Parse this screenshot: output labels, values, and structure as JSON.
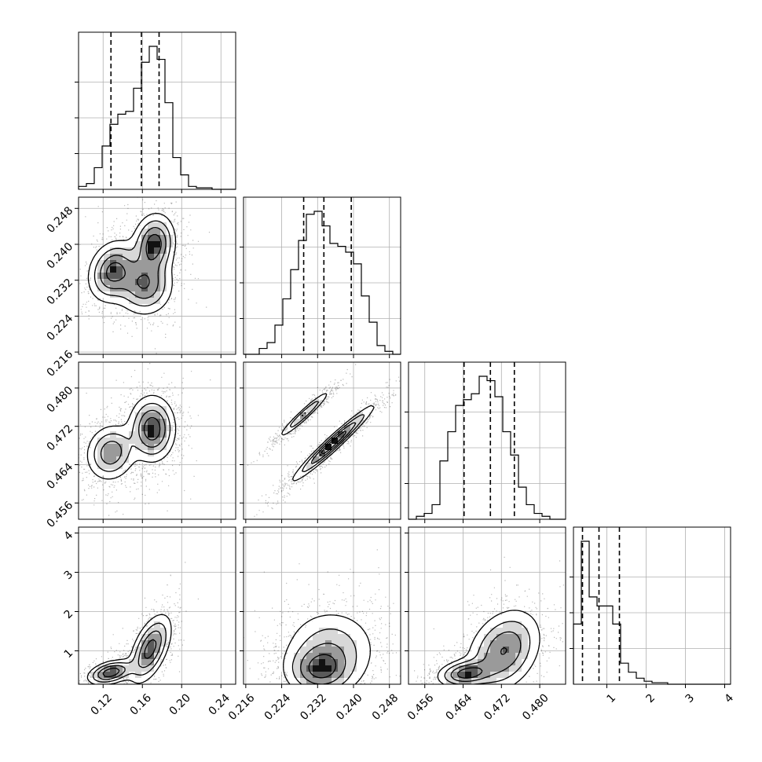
{
  "chart_data": {
    "type": "corner",
    "grid": true,
    "colors": {
      "points": "#000000",
      "line": "#000000",
      "fill_max": "#111111"
    },
    "parameters": [
      {
        "ticks": [
          0.12,
          0.16,
          0.2,
          0.24
        ],
        "tick_labels": [
          "0.12",
          "0.16",
          "0.20",
          "0.24"
        ],
        "range": [
          0.095,
          0.255
        ]
      },
      {
        "ticks": [
          0.216,
          0.224,
          0.232,
          0.24,
          0.248
        ],
        "tick_labels": [
          "0.216",
          "0.224",
          "0.232",
          "0.240",
          "0.248"
        ],
        "range": [
          0.2155,
          0.2505
        ]
      },
      {
        "ticks": [
          0.456,
          0.464,
          0.472,
          0.48
        ],
        "tick_labels": [
          "0.456",
          "0.464",
          "0.472",
          "0.480"
        ],
        "range": [
          0.4526,
          0.4854
        ]
      },
      {
        "ticks": [
          1,
          2,
          3,
          4
        ],
        "tick_labels": [
          "1",
          "2",
          "3",
          "4"
        ],
        "range": [
          0.15,
          4.15
        ]
      }
    ],
    "histograms": [
      {
        "edges": [
          0.095,
          0.103,
          0.111,
          0.119,
          0.127,
          0.135,
          0.143,
          0.151,
          0.159,
          0.167,
          0.175,
          0.183,
          0.191,
          0.199,
          0.207,
          0.215,
          0.223,
          0.231,
          0.239,
          0.247,
          0.255
        ],
        "counts": [
          0.02,
          0.04,
          0.15,
          0.3,
          0.45,
          0.52,
          0.54,
          0.7,
          0.88,
          0.99,
          0.9,
          0.6,
          0.22,
          0.1,
          0.02,
          0.01,
          0.01,
          0,
          0,
          0
        ],
        "quantiles": [
          0.128,
          0.159,
          0.177
        ]
      },
      {
        "edges": [
          0.2155,
          0.21725,
          0.219,
          0.22075,
          0.2225,
          0.22425,
          0.226,
          0.22775,
          0.2295,
          0.23125,
          0.233,
          0.23475,
          0.2365,
          0.23825,
          0.24,
          0.24175,
          0.2435,
          0.24525,
          0.247,
          0.24875,
          0.2505
        ],
        "counts": [
          0,
          0,
          0.04,
          0.08,
          0.2,
          0.38,
          0.58,
          0.78,
          0.96,
          0.98,
          0.88,
          0.76,
          0.74,
          0.7,
          0.62,
          0.4,
          0.22,
          0.06,
          0.02,
          0
        ],
        "quantiles": [
          0.2289,
          0.2334,
          0.2395
        ]
      },
      {
        "edges": [
          0.4526,
          0.45424,
          0.45588,
          0.45752,
          0.45916,
          0.4608,
          0.46244,
          0.46408,
          0.46572,
          0.46736,
          0.469,
          0.47064,
          0.47228,
          0.47392,
          0.47556,
          0.4772,
          0.47884,
          0.48048,
          0.48212,
          0.48376,
          0.4854
        ],
        "counts": [
          0,
          0.02,
          0.04,
          0.1,
          0.4,
          0.6,
          0.78,
          0.82,
          0.86,
          0.98,
          0.95,
          0.84,
          0.6,
          0.44,
          0.22,
          0.1,
          0.04,
          0.02,
          0,
          0
        ],
        "quantiles": [
          0.4642,
          0.4697,
          0.4747
        ]
      },
      {
        "edges": [
          0.15,
          0.35,
          0.55,
          0.75,
          0.95,
          1.15,
          1.35,
          1.55,
          1.75,
          1.95,
          2.15,
          2.35,
          2.55,
          2.75,
          2.95,
          3.15,
          3.35,
          3.55,
          3.75,
          3.95,
          4.15
        ],
        "counts": [
          0.4,
          0.95,
          0.58,
          0.52,
          0.52,
          0.4,
          0.14,
          0.08,
          0.04,
          0.02,
          0.01,
          0.01,
          0,
          0,
          0,
          0,
          0,
          0,
          0,
          0
        ],
        "quantiles": [
          0.38,
          0.8,
          1.32
        ]
      }
    ],
    "pairs": [
      {
        "row": 1,
        "col": 0,
        "blobs": [
          {
            "x": 0.13,
            "y": 0.234,
            "sx": 0.013,
            "sy": 0.0035,
            "rho": 0.2,
            "w": 1.0
          },
          {
            "x": 0.172,
            "y": 0.24,
            "sx": 0.011,
            "sy": 0.0035,
            "rho": 0.1,
            "w": 1.1
          },
          {
            "x": 0.162,
            "y": 0.231,
            "sx": 0.015,
            "sy": 0.0035,
            "rho": 0.0,
            "w": 0.9
          }
        ]
      },
      {
        "row": 2,
        "col": 0,
        "blobs": [
          {
            "x": 0.128,
            "y": 0.4665,
            "sx": 0.013,
            "sy": 0.003,
            "rho": 0.1,
            "w": 0.9
          },
          {
            "x": 0.17,
            "y": 0.4715,
            "sx": 0.012,
            "sy": 0.0035,
            "rho": 0.0,
            "w": 1.2
          }
        ]
      },
      {
        "row": 2,
        "col": 1,
        "blobs": [
          {
            "x": 0.229,
            "y": 0.4745,
            "sx": 0.003,
            "sy": 0.0026,
            "rho": 0.96,
            "w": 0.7
          },
          {
            "x": 0.2355,
            "y": 0.4685,
            "sx": 0.0046,
            "sy": 0.004,
            "rho": 0.97,
            "w": 1.2
          }
        ]
      },
      {
        "row": 3,
        "col": 0,
        "blobs": [
          {
            "x": 0.128,
            "y": 0.45,
            "sx": 0.012,
            "sy": 0.16,
            "rho": 0.4,
            "w": 1.1
          },
          {
            "x": 0.168,
            "y": 1.05,
            "sx": 0.011,
            "sy": 0.45,
            "rho": 0.55,
            "w": 1.0
          }
        ]
      },
      {
        "row": 3,
        "col": 1,
        "blobs": [
          {
            "x": 0.2325,
            "y": 0.5,
            "sx": 0.004,
            "sy": 0.35,
            "rho": 0.0,
            "w": 1.2
          },
          {
            "x": 0.235,
            "y": 1.05,
            "sx": 0.0055,
            "sy": 0.55,
            "rho": 0.0,
            "w": 0.8
          }
        ]
      },
      {
        "row": 3,
        "col": 2,
        "blobs": [
          {
            "x": 0.4645,
            "y": 0.42,
            "sx": 0.003,
            "sy": 0.18,
            "rho": 0.2,
            "w": 1.1
          },
          {
            "x": 0.4725,
            "y": 1.0,
            "sx": 0.004,
            "sy": 0.55,
            "rho": 0.3,
            "w": 1.0
          }
        ]
      }
    ]
  }
}
